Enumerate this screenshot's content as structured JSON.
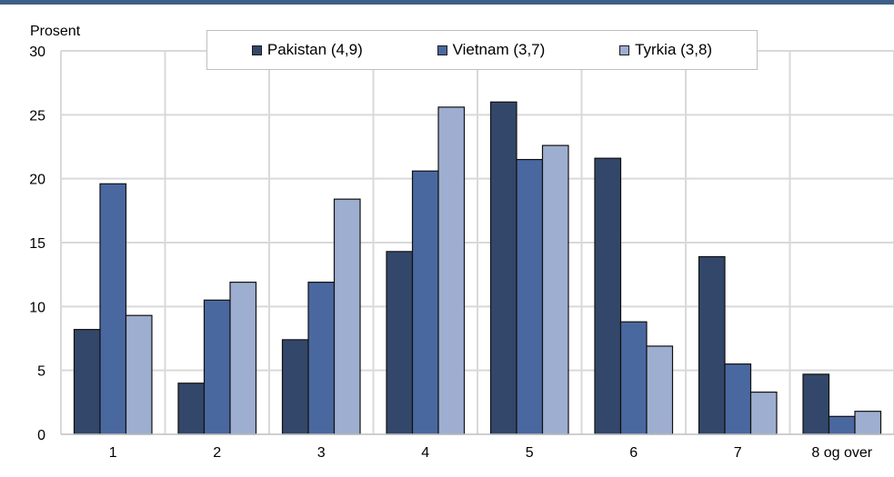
{
  "chart_data": {
    "type": "bar",
    "ylabel": "Prosent",
    "ylim": [
      0,
      30
    ],
    "yticks": [
      0,
      5,
      10,
      15,
      20,
      25,
      30
    ],
    "categories": [
      "1",
      "2",
      "3",
      "4",
      "5",
      "6",
      "7",
      "8 og over"
    ],
    "series": [
      {
        "name": "Pakistan (4,9)",
        "color": "#33476a",
        "values": [
          8.2,
          4.0,
          7.4,
          14.3,
          26.0,
          21.6,
          13.9,
          4.7
        ]
      },
      {
        "name": "Vietnam (3,7)",
        "color": "#4a68a0",
        "values": [
          19.6,
          10.5,
          11.9,
          20.6,
          21.5,
          8.8,
          5.5,
          1.4
        ]
      },
      {
        "name": "Tyrkia (3,8)",
        "color": "#9eaed0",
        "values": [
          9.3,
          11.9,
          18.4,
          25.6,
          22.6,
          6.9,
          3.3,
          1.8
        ]
      }
    ],
    "grid": true,
    "legend_position": "top"
  }
}
